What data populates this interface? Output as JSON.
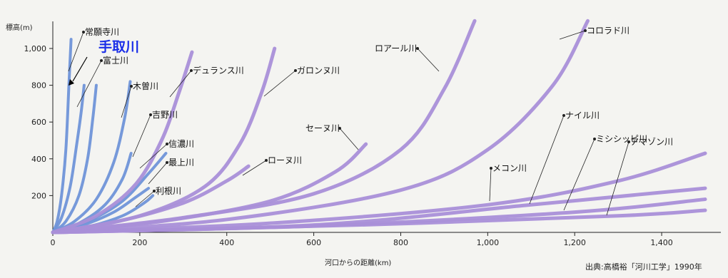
{
  "chart_data": {
    "type": "line",
    "ylabel": "標高(m)",
    "xlabel": "河口からの距離(km)",
    "source": "出典:高橋裕「河川工学」1990年",
    "xlim": [
      0,
      1500
    ],
    "ylim": [
      0,
      1000
    ],
    "x_ticks": [
      "0",
      "200",
      "400",
      "600",
      "800",
      "1,000",
      "1,200",
      "1,400"
    ],
    "y_ticks": [
      "200",
      "400",
      "600",
      "800",
      "1,000"
    ],
    "colors": {
      "japanese": "#6f94d8",
      "foreign": "#a98fd8",
      "highlight": "#1a2ee8"
    },
    "series": [
      {
        "name": "常願寺川",
        "group": "japanese",
        "x": [
          0,
          10,
          20,
          30,
          37,
          42
        ],
        "y": [
          0,
          60,
          200,
          450,
          800,
          1050
        ]
      },
      {
        "name": "手取川",
        "group": "japanese",
        "highlight": true,
        "x": [
          0,
          20,
          40,
          55,
          65,
          72
        ],
        "y": [
          0,
          80,
          250,
          480,
          650,
          800
        ]
      },
      {
        "name": "富士川",
        "group": "japanese",
        "x": [
          0,
          30,
          60,
          80,
          92,
          100
        ],
        "y": [
          0,
          60,
          200,
          400,
          620,
          800
        ]
      },
      {
        "name": "木曽川",
        "group": "japanese",
        "x": [
          0,
          50,
          100,
          140,
          165,
          178
        ],
        "y": [
          0,
          60,
          180,
          380,
          620,
          820
        ]
      },
      {
        "name": "吉野川",
        "group": "japanese",
        "x": [
          0,
          60,
          120,
          160,
          180
        ],
        "y": [
          0,
          50,
          150,
          290,
          430
        ]
      },
      {
        "name": "信濃川",
        "group": "japanese",
        "x": [
          0,
          80,
          160,
          220,
          260
        ],
        "y": [
          0,
          60,
          170,
          320,
          430
        ]
      },
      {
        "name": "最上川",
        "group": "japanese",
        "x": [
          0,
          70,
          140,
          190,
          220
        ],
        "y": [
          0,
          40,
          110,
          190,
          240
        ]
      },
      {
        "name": "利根川",
        "group": "japanese",
        "x": [
          0,
          80,
          160,
          210,
          230
        ],
        "y": [
          0,
          30,
          90,
          160,
          200
        ]
      },
      {
        "name": "デュランス川",
        "group": "foreign",
        "x": [
          0,
          100,
          190,
          250,
          290,
          320
        ],
        "y": [
          0,
          90,
          260,
          500,
          760,
          980
        ]
      },
      {
        "name": "ローヌ川",
        "group": "foreign",
        "x": [
          0,
          150,
          300,
          400,
          450
        ],
        "y": [
          0,
          60,
          160,
          280,
          360
        ]
      },
      {
        "name": "ガロンヌ川",
        "group": "foreign",
        "x": [
          0,
          200,
          350,
          430,
          480,
          510
        ],
        "y": [
          0,
          90,
          250,
          480,
          760,
          1000
        ]
      },
      {
        "name": "セーヌ川",
        "group": "foreign",
        "x": [
          0,
          250,
          500,
          650,
          720
        ],
        "y": [
          0,
          60,
          170,
          330,
          480
        ]
      },
      {
        "name": "ロアール川",
        "group": "foreign",
        "x": [
          0,
          300,
          600,
          800,
          900,
          970
        ],
        "y": [
          0,
          80,
          210,
          450,
          780,
          1150
        ]
      },
      {
        "name": "コロラド川",
        "group": "foreign",
        "x": [
          0,
          400,
          800,
          1000,
          1150,
          1230
        ],
        "y": [
          0,
          70,
          230,
          450,
          800,
          1150
        ]
      },
      {
        "name": "メコン川",
        "group": "foreign",
        "x": [
          0,
          500,
          1000,
          1300,
          1500
        ],
        "y": [
          0,
          50,
          150,
          280,
          430
        ]
      },
      {
        "name": "ナイル川",
        "group": "foreign",
        "x": [
          0,
          600,
          1100,
          1500
        ],
        "y": [
          0,
          40,
          150,
          240
        ]
      },
      {
        "name": "ミシシッピ川",
        "group": "foreign",
        "x": [
          0,
          600,
          1200,
          1500
        ],
        "y": [
          0,
          35,
          110,
          180
        ]
      },
      {
        "name": "アマゾン川",
        "group": "foreign",
        "x": [
          0,
          700,
          1300,
          1500
        ],
        "y": [
          0,
          40,
          90,
          120
        ]
      }
    ]
  }
}
